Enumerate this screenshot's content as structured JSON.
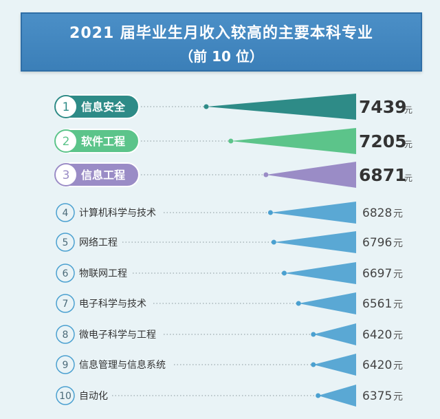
{
  "title_line1": "2021 届毕业生月收入较高的主要本科专业",
  "title_line2": "（前 10 位）",
  "unit": "元",
  "colors": {
    "rank1": "#2e8b87",
    "rank2": "#5cc48a",
    "rank3": "#9a8cc6",
    "default": "#4aa0d0",
    "text": "#333333"
  },
  "chart_data": {
    "type": "bar",
    "title": "2021 届毕业生月收入较高的主要本科专业",
    "subtitle": "（前 10 位）",
    "categories": [
      "信息安全",
      "软件工程",
      "信息工程",
      "计算机科学与技术",
      "网络工程",
      "物联网工程",
      "电子科学与技术",
      "微电子科学与工程",
      "信息管理与信息系统",
      "自动化"
    ],
    "ranks": [
      "1",
      "2",
      "3",
      "4",
      "5",
      "6",
      "7",
      "8",
      "9",
      "10"
    ],
    "values": [
      7439,
      7205,
      6871,
      6828,
      6796,
      6697,
      6561,
      6420,
      6420,
      6375
    ],
    "value_labels": [
      "7439",
      "7205",
      "6871",
      "6828",
      "6796",
      "6697",
      "6561",
      "6420",
      "6420",
      "6375"
    ],
    "xlim": [
      6000,
      7439
    ]
  }
}
